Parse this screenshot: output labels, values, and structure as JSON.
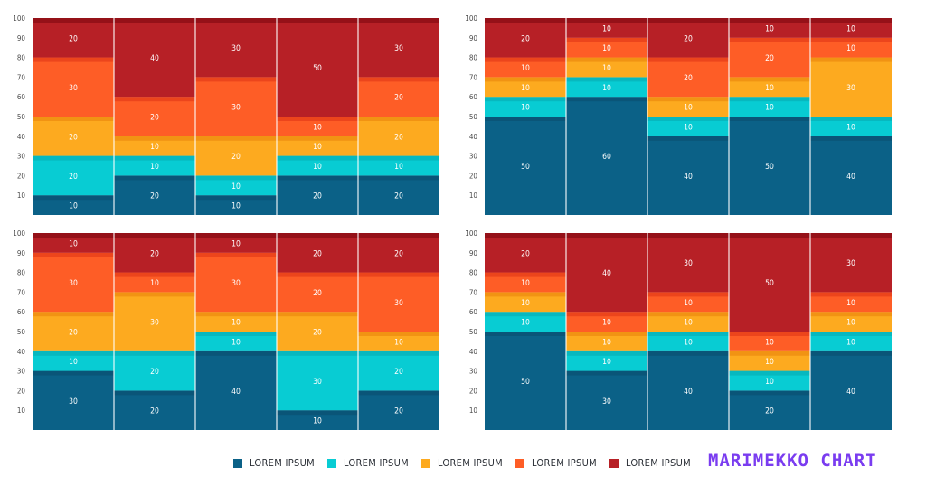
{
  "brand_title": "MARIMEKKO CHART",
  "colors": [
    "#0b6187",
    "#08ccd3",
    "#fdaa1f",
    "#fe5d26",
    "#b72026"
  ],
  "legend": [
    {
      "label": "LOREM IPSUM",
      "color": "#0b6187"
    },
    {
      "label": "LOREM IPSUM",
      "color": "#08ccd3"
    },
    {
      "label": "LOREM IPSUM",
      "color": "#fdaa1f"
    },
    {
      "label": "LOREM IPSUM",
      "color": "#fe5d26"
    },
    {
      "label": "LOREM IPSUM",
      "color": "#b72026"
    }
  ],
  "chart_data": [
    {
      "type": "marimekko-step",
      "position": "top-left",
      "yticks": [
        10,
        20,
        30,
        40,
        50,
        60,
        70,
        80,
        90,
        100
      ],
      "ylim": [
        0,
        100
      ],
      "columns": [
        [
          10,
          20,
          20,
          30,
          20
        ],
        [
          20,
          10,
          10,
          20,
          40
        ],
        [
          10,
          10,
          20,
          30,
          30
        ],
        [
          20,
          10,
          10,
          10,
          50
        ],
        [
          20,
          10,
          20,
          20,
          30
        ]
      ]
    },
    {
      "type": "marimekko-step",
      "position": "top-right",
      "yticks": [
        10,
        20,
        30,
        40,
        50,
        60,
        70,
        80,
        90,
        100
      ],
      "ylim": [
        0,
        100
      ],
      "columns": [
        [
          50,
          10,
          10,
          10,
          20
        ],
        [
          60,
          10,
          10,
          10,
          10
        ],
        [
          40,
          10,
          10,
          20,
          20
        ],
        [
          50,
          10,
          10,
          20,
          10
        ],
        [
          40,
          10,
          30,
          10,
          10
        ]
      ]
    },
    {
      "type": "marimekko-step",
      "position": "bottom-left",
      "yticks": [
        10,
        20,
        30,
        40,
        50,
        60,
        70,
        80,
        90,
        100
      ],
      "ylim": [
        0,
        100
      ],
      "columns": [
        [
          30,
          10,
          20,
          30,
          10
        ],
        [
          20,
          20,
          30,
          10,
          20
        ],
        [
          40,
          10,
          10,
          30,
          10
        ],
        [
          10,
          30,
          20,
          20,
          20
        ],
        [
          20,
          20,
          10,
          30,
          20
        ]
      ]
    },
    {
      "type": "marimekko-step",
      "position": "bottom-right",
      "yticks": [
        10,
        20,
        30,
        40,
        50,
        60,
        70,
        80,
        90,
        100
      ],
      "ylim": [
        0,
        100
      ],
      "columns": [
        [
          50,
          10,
          10,
          10,
          20
        ],
        [
          30,
          10,
          10,
          10,
          40
        ],
        [
          40,
          10,
          10,
          10,
          30
        ],
        [
          20,
          10,
          10,
          10,
          50
        ],
        [
          40,
          10,
          10,
          10,
          30
        ]
      ]
    }
  ]
}
